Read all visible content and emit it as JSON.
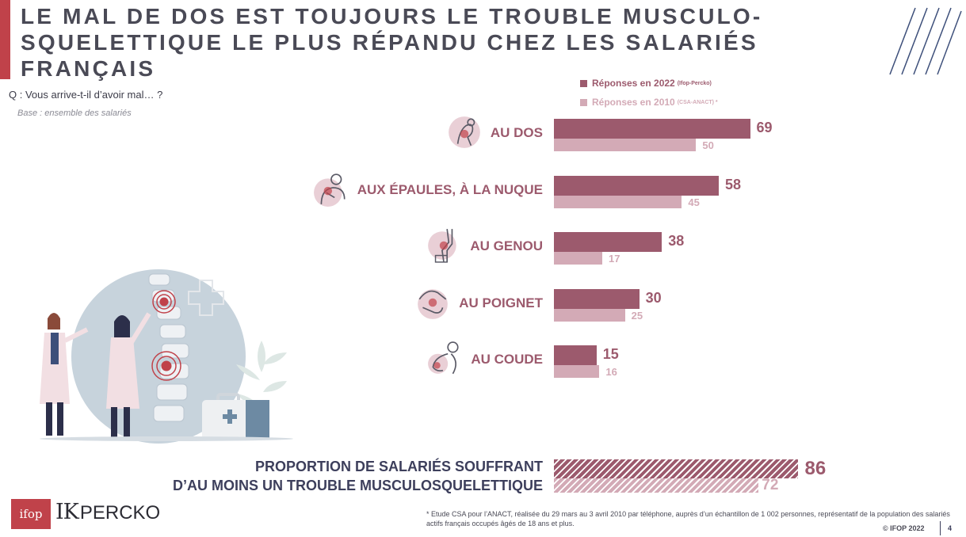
{
  "title": {
    "lines": [
      "LE MAL DE DOS EST TOUJOURS LE TROUBLE MUSCULO-",
      "SQUELETTIQUE LE PLUS RÉPANDU CHEZ LES SALARIÉS",
      "FRANÇAIS"
    ]
  },
  "question": "Q : Vous arrive-t-il d’avoir mal… ?",
  "base": "Base : ensemble des salariés",
  "legend": {
    "items": [
      {
        "label": "Réponses en 2022",
        "source": "(Ifop-Percko)",
        "color": "#9c5a6d"
      },
      {
        "label": "Réponses en 2010",
        "source": "(CSA-ANACT) *",
        "color": "#d3aab6"
      }
    ]
  },
  "chart_data": {
    "type": "bar",
    "orientation": "horizontal",
    "categories": [
      "AU DOS",
      "AUX ÉPAULES, À LA NUQUE",
      "AU GENOU",
      "AU POIGNET",
      "AU COUDE"
    ],
    "series": [
      {
        "name": "Réponses en 2022 (Ifop-Percko)",
        "values": [
          69,
          58,
          38,
          30,
          15
        ],
        "color": "#9c5a6d"
      },
      {
        "name": "Réponses en 2010 (CSA-ANACT) *",
        "values": [
          50,
          45,
          17,
          25,
          16
        ],
        "color": "#d3aab6"
      }
    ],
    "icons": [
      "back-pain-icon",
      "shoulder-pain-icon",
      "knee-pain-icon",
      "wrist-pain-icon",
      "elbow-pain-icon"
    ],
    "summary": {
      "label_lines": [
        "PROPORTION DE SALARIÉS SOUFFRANT",
        "D’AU MOINS UN TROUBLE MUSCULOSQUELETTIQUE"
      ],
      "values": [
        86,
        72
      ]
    },
    "xlim": [
      0,
      100
    ],
    "grid": false
  },
  "logos": {
    "ifop": "ifop",
    "percko_mark": "IK",
    "percko_word": "PERCKO"
  },
  "footnote": "* Etude CSA pour l’ANACT, réalisée du 29 mars au 3 avril 2010 par téléphone, auprès d’un échantillon de 1 002 personnes, représentatif de la population des salariés actifs français occupés âgés de 18 ans et plus.",
  "copyright": "© IFOP 2022",
  "page_number": "4"
}
